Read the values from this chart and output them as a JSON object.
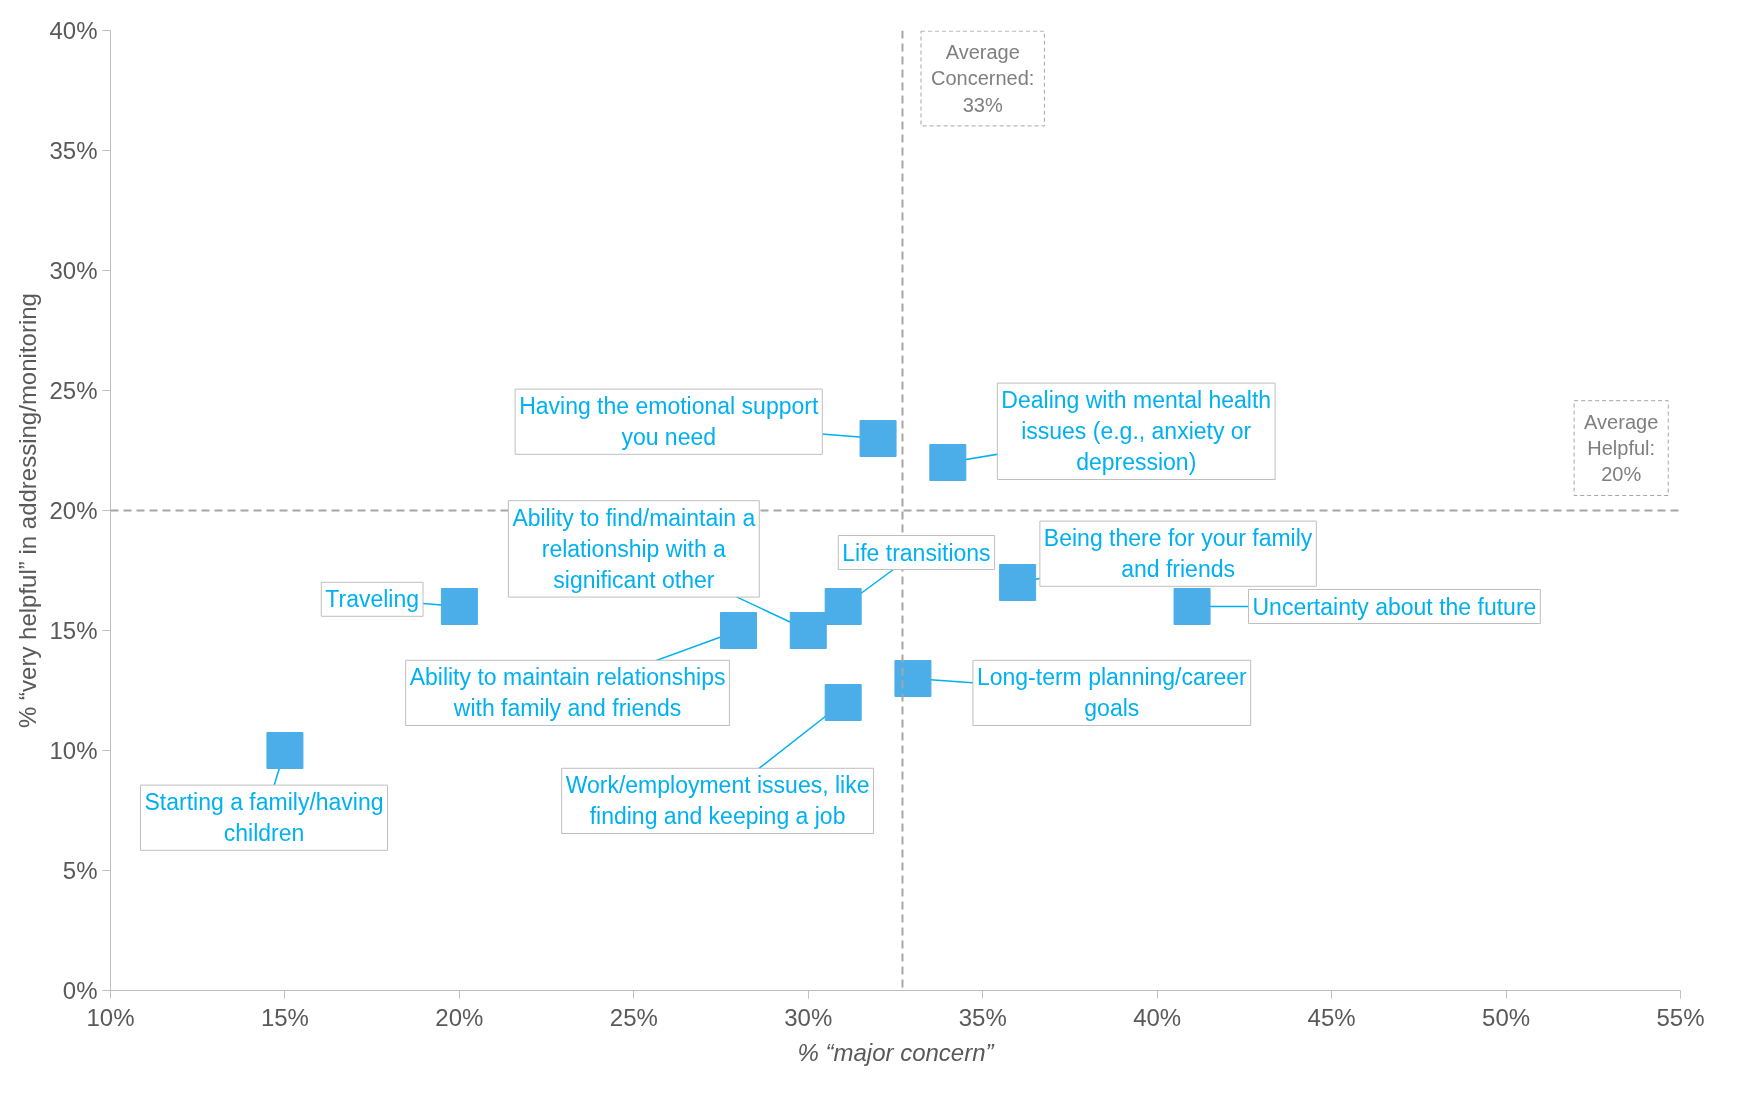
{
  "chart_data": {
    "type": "scatter",
    "xlabel": "% “major concern”",
    "ylabel": "% “very helpful” in addressing/monitoring",
    "x": [
      15,
      20,
      28,
      30,
      31,
      31,
      32,
      34,
      33,
      36,
      41
    ],
    "series": [
      {
        "color": "#4baee8",
        "values": [
          10,
          16,
          15,
          15,
          16,
          12,
          23,
          22,
          13,
          17,
          16
        ]
      }
    ],
    "marker": "square",
    "grid": false,
    "xlim": [
      10,
      55
    ],
    "ylim": [
      0,
      40
    ],
    "xticks": [
      {
        "value": 10,
        "label": "10%"
      },
      {
        "value": 15,
        "label": "15%"
      },
      {
        "value": 20,
        "label": "20%"
      },
      {
        "value": 25,
        "label": "25%"
      },
      {
        "value": 30,
        "label": "30%"
      },
      {
        "value": 35,
        "label": "35%"
      },
      {
        "value": 40,
        "label": "40%"
      },
      {
        "value": 45,
        "label": "45%"
      },
      {
        "value": 50,
        "label": "50%"
      },
      {
        "value": 55,
        "label": "55%"
      }
    ],
    "yticks": [
      {
        "value": 0,
        "label": "0%"
      },
      {
        "value": 5,
        "label": "5%"
      },
      {
        "value": 10,
        "label": "10%"
      },
      {
        "value": 15,
        "label": "15%"
      },
      {
        "value": 20,
        "label": "20%"
      },
      {
        "value": 25,
        "label": "25%"
      },
      {
        "value": 30,
        "label": "30%"
      },
      {
        "value": 35,
        "label": "35%"
      },
      {
        "value": 40,
        "label": "40%"
      }
    ],
    "ref_lines": [
      {
        "axis": "x",
        "value": 32.7,
        "label": "Average Concerned: 33%",
        "color": "#a6a6a6",
        "line_style": "dashed"
      },
      {
        "axis": "y",
        "value": 20,
        "label": "Average Helpful: 20%",
        "color": "#a6a6a6",
        "line_style": "dashed"
      }
    ],
    "annotations": [
      {
        "text": "Starting a family/having children",
        "x": 15,
        "y": 10
      },
      {
        "text": "Traveling",
        "x": 20,
        "y": 16
      },
      {
        "text": "Ability to maintain relationships with family and friends",
        "x": 28,
        "y": 15
      },
      {
        "text": "Ability to find/maintain a relationship with a significant other",
        "x": 30,
        "y": 15
      },
      {
        "text": "Life transitions",
        "x": 31,
        "y": 16
      },
      {
        "text": "Work/employment issues, like finding and keeping a job",
        "x": 31,
        "y": 12
      },
      {
        "text": "Having the emotional support you need",
        "x": 32,
        "y": 23
      },
      {
        "text": "Dealing with mental health issues (e.g., anxiety or depression)",
        "x": 34,
        "y": 22
      },
      {
        "text": "Long-term planning/career goals",
        "x": 33,
        "y": 13
      },
      {
        "text": "Being there for your family and friends",
        "x": 36,
        "y": 17
      },
      {
        "text": "Uncertainty about the future",
        "x": 41,
        "y": 16
      }
    ]
  }
}
